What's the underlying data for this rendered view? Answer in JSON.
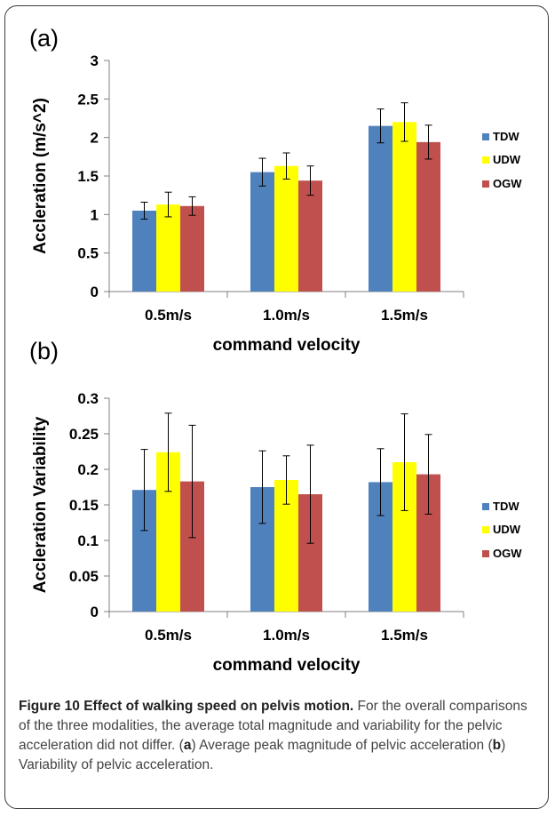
{
  "chart_data": [
    {
      "type": "bar",
      "panel_label": "(a)",
      "categories": [
        "0.5m/s",
        "1.0m/s",
        "1.5m/s"
      ],
      "xlabel": "command  velocity",
      "ylabel": "Accleration (m/s^2)",
      "ylim": [
        0,
        3
      ],
      "yticks": [
        "0",
        "0.5",
        "1",
        "1.5",
        "2",
        "2.5",
        "3"
      ],
      "ytick_values": [
        0,
        0.5,
        1,
        1.5,
        2,
        2.5,
        3
      ],
      "legend_position": "right",
      "series": [
        {
          "name": "TDW",
          "color": "#4f81bd",
          "values": [
            1.05,
            1.55,
            2.15
          ],
          "errors": [
            0.11,
            0.18,
            0.22
          ]
        },
        {
          "name": "UDW",
          "color": "#ffff00",
          "values": [
            1.13,
            1.63,
            2.2
          ],
          "errors": [
            0.16,
            0.17,
            0.25
          ]
        },
        {
          "name": "OGW",
          "color": "#c0504d",
          "values": [
            1.11,
            1.44,
            1.94
          ],
          "errors": [
            0.12,
            0.19,
            0.22
          ]
        }
      ]
    },
    {
      "type": "bar",
      "panel_label": "(b)",
      "categories": [
        "0.5m/s",
        "1.0m/s",
        "1.5m/s"
      ],
      "xlabel": "command  velocity",
      "ylabel": "Accleration Variability",
      "ylim": [
        0,
        0.3
      ],
      "yticks": [
        "0",
        "0.05",
        "0.1",
        "0.15",
        "0.2",
        "0.25",
        "0.3"
      ],
      "ytick_values": [
        0,
        0.05,
        0.1,
        0.15,
        0.2,
        0.25,
        0.3
      ],
      "legend_position": "right",
      "series": [
        {
          "name": "TDW",
          "color": "#4f81bd",
          "values": [
            0.171,
            0.175,
            0.182
          ],
          "errors": [
            0.057,
            0.051,
            0.047
          ]
        },
        {
          "name": "UDW",
          "color": "#ffff00",
          "values": [
            0.224,
            0.185,
            0.21
          ],
          "errors": [
            0.055,
            0.034,
            0.068
          ]
        },
        {
          "name": "OGW",
          "color": "#c0504d",
          "values": [
            0.183,
            0.165,
            0.193
          ],
          "errors": [
            0.079,
            0.069,
            0.056
          ]
        }
      ]
    }
  ],
  "caption": {
    "title": "Figure 10 Effect of walking speed on pelvis motion.",
    "text1": " For the overall comparisons of the three modalities, the average total magnitude and variability for the pelvic acceleration did not differ. (",
    "a": "a",
    "text2": ") Average peak magnitude of pelvic acceleration (",
    "b": "b",
    "text3": ") Variability of pelvic acceleration."
  }
}
